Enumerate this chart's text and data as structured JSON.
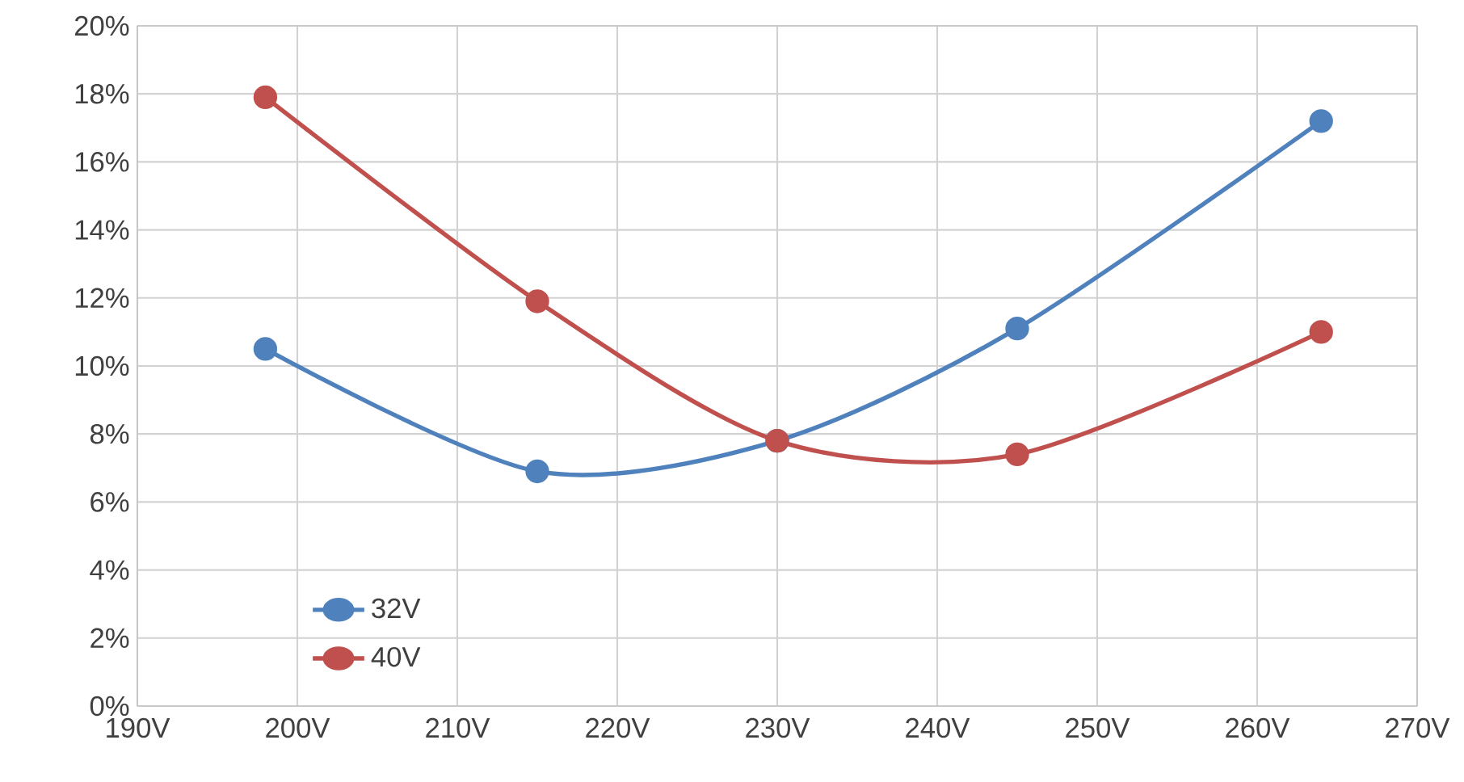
{
  "chart_data": {
    "type": "line",
    "x": [
      198,
      215,
      230,
      245,
      264
    ],
    "series": [
      {
        "name": "32V",
        "color": "#4f81bd",
        "values": [
          10.5,
          6.9,
          7.8,
          11.1,
          17.2
        ]
      },
      {
        "name": "40V",
        "color": "#c0504d",
        "values": [
          17.9,
          11.9,
          7.8,
          7.4,
          11.0
        ]
      }
    ],
    "xlim": [
      190,
      270
    ],
    "xticks": [
      {
        "value": 190,
        "label": "190V"
      },
      {
        "value": 200,
        "label": "200V"
      },
      {
        "value": 210,
        "label": "210V"
      },
      {
        "value": 220,
        "label": "220V"
      },
      {
        "value": 230,
        "label": "230V"
      },
      {
        "value": 240,
        "label": "240V"
      },
      {
        "value": 250,
        "label": "250V"
      },
      {
        "value": 260,
        "label": "260V"
      },
      {
        "value": 270,
        "label": "270V"
      }
    ],
    "ylim": [
      0,
      20
    ],
    "yticks": [
      {
        "value": 0,
        "label": "0%"
      },
      {
        "value": 2,
        "label": "2%"
      },
      {
        "value": 4,
        "label": "4%"
      },
      {
        "value": 6,
        "label": "6%"
      },
      {
        "value": 8,
        "label": "8%"
      },
      {
        "value": 10,
        "label": "10%"
      },
      {
        "value": 12,
        "label": "12%"
      },
      {
        "value": 14,
        "label": "14%"
      },
      {
        "value": 16,
        "label": "16%"
      },
      {
        "value": 18,
        "label": "18%"
      },
      {
        "value": 20,
        "label": "20%"
      }
    ],
    "grid": true,
    "legend": "bottom left",
    "marker": "circle",
    "line_style": "solid"
  }
}
